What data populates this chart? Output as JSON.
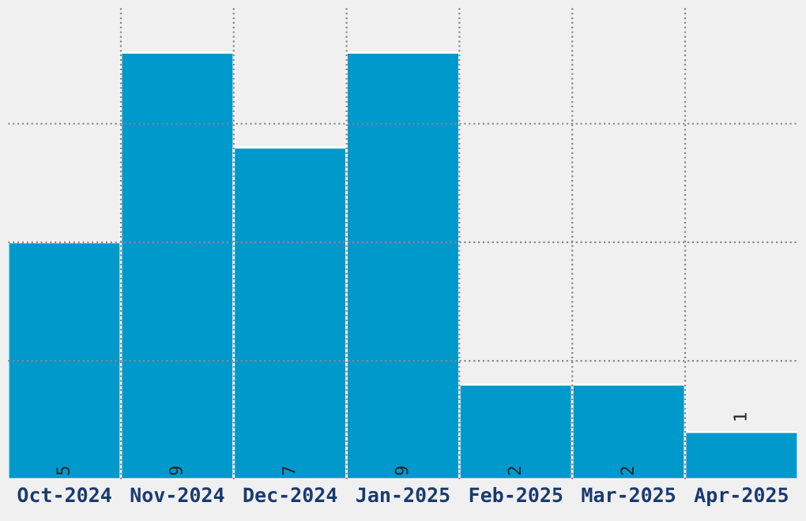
{
  "chart_data": {
    "type": "bar",
    "categories": [
      "Oct-2024",
      "Nov-2024",
      "Dec-2024",
      "Jan-2025",
      "Feb-2025",
      "Mar-2025",
      "Apr-2025"
    ],
    "values": [
      5,
      9,
      7,
      9,
      2,
      2,
      1
    ],
    "color": "#0099cc",
    "ylim": [
      0,
      10
    ],
    "yticks": [
      {
        "value": 2.5,
        "label": null
      },
      {
        "value": 5,
        "label": null
      },
      {
        "value": 7.5,
        "label": null
      }
    ],
    "tick_labels": "x",
    "grid": true,
    "data_labels": true
  }
}
